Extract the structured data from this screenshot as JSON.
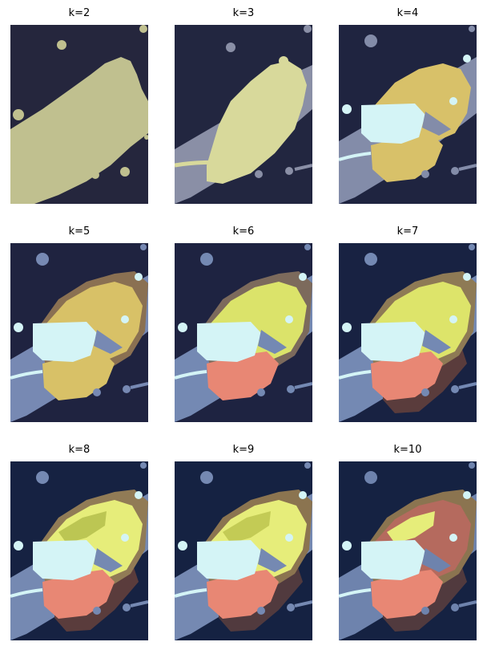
{
  "figure": {
    "panels": [
      {
        "label": "k=2",
        "k": 2,
        "colors": [
          "#25263d",
          "#c0c08f"
        ]
      },
      {
        "label": "k=3",
        "k": 3,
        "colors": [
          "#222640",
          "#8a8fa6",
          "#d8d99b"
        ]
      },
      {
        "label": "k=4",
        "k": 4,
        "colors": [
          "#1f2440",
          "#838ca9",
          "#d8c169",
          "#d4f4f6"
        ]
      },
      {
        "label": "k=5",
        "k": 5,
        "colors": [
          "#1f2340",
          "#7789b3",
          "#8a7052",
          "#d8c167",
          "#d4f4f6"
        ]
      },
      {
        "label": "k=6",
        "k": 6,
        "colors": [
          "#1e2341",
          "#7489b3",
          "#7c6a5c",
          "#e88774",
          "#dbe36a",
          "#d4f4f6"
        ]
      },
      {
        "label": "k=7",
        "k": 7,
        "colors": [
          "#182242",
          "#5a3c3c",
          "#7489b3",
          "#8e7a55",
          "#e88774",
          "#dde46a",
          "#d4f4f6"
        ]
      },
      {
        "label": "k=8",
        "k": 8,
        "colors": [
          "#162242",
          "#5a3c3c",
          "#7589b2",
          "#917b56",
          "#e88774",
          "#bcc653",
          "#e6ed7a",
          "#d4f4f6"
        ]
      },
      {
        "label": "k=9",
        "k": 9,
        "colors": [
          "#152242",
          "#513a3e",
          "#7589b2",
          "#8b7450",
          "#e88774",
          "#9ea34a",
          "#c3cb55",
          "#e6ed7a",
          "#d4f4f6"
        ]
      },
      {
        "label": "k=10",
        "k": 10,
        "colors": [
          "#152242",
          "#513a3e",
          "#6e83ad",
          "#8b7450",
          "#e88774",
          "#9ea34a",
          "#c3cb55",
          "#e6ed7a",
          "#b56a5e",
          "#d4f4f6"
        ]
      }
    ]
  }
}
